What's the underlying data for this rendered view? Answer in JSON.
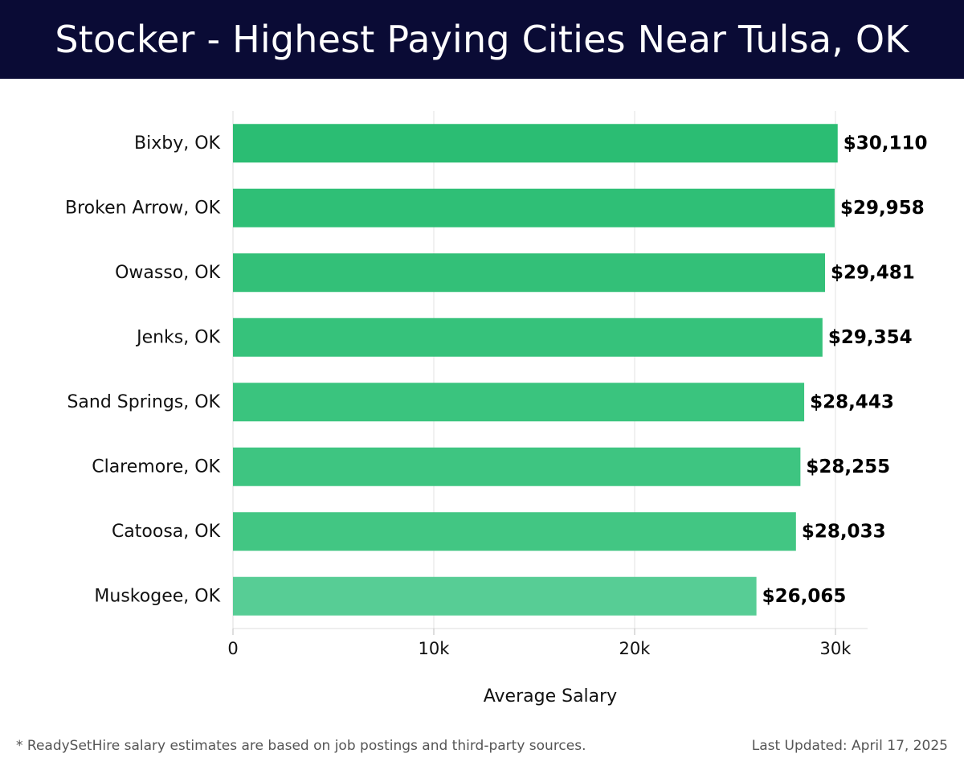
{
  "header": {
    "title": "Stocker - Highest Paying Cities Near Tulsa, OK",
    "background": "#0a0b35"
  },
  "chart_data": {
    "type": "bar",
    "orientation": "horizontal",
    "categories": [
      "Bixby, OK",
      "Broken Arrow, OK",
      "Owasso, OK",
      "Jenks, OK",
      "Sand Springs, OK",
      "Claremore, OK",
      "Catoosa, OK",
      "Muskogee, OK"
    ],
    "values": [
      30110,
      29958,
      29481,
      29354,
      28443,
      28255,
      28033,
      26065
    ],
    "value_labels": [
      "$30,110",
      "$29,958",
      "$29,481",
      "$29,354",
      "$28,443",
      "$28,255",
      "$28,033",
      "$26,065"
    ],
    "title": "Stocker - Highest Paying Cities Near Tulsa, OK",
    "xlabel": "Average Salary",
    "ylabel": "",
    "xlim": [
      0,
      31700
    ],
    "x_ticks": [
      0,
      10000,
      20000,
      30000
    ],
    "x_tick_labels": [
      "0",
      "10k",
      "20k",
      "30k"
    ],
    "grid": "vertical",
    "bar_colors": [
      "#2bbd73",
      "#2fbf76",
      "#33c078",
      "#36c27b",
      "#3ac47e",
      "#3ec581",
      "#42c683",
      "#57cd95"
    ]
  },
  "footer": {
    "note": "* ReadySetHire salary estimates are based on job postings and third-party sources.",
    "updated": "Last Updated: April 17, 2025"
  }
}
